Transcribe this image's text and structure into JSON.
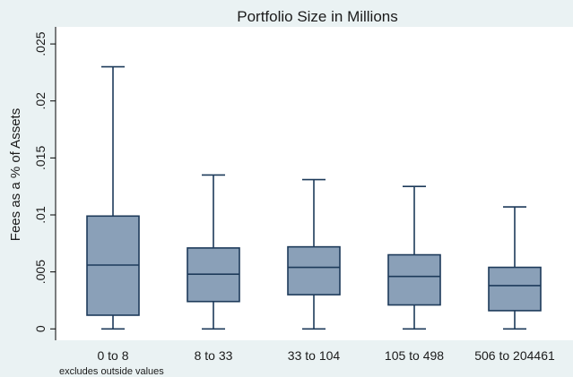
{
  "chart_data": {
    "type": "box",
    "title": "Portfolio Size in Millions",
    "xlabel": "",
    "ylabel": "Fees as a % of Assets",
    "note": "excludes outside values",
    "ylim": [
      -0.001,
      0.0265
    ],
    "yticks": [
      0,
      0.005,
      0.01,
      0.015,
      0.02,
      0.025
    ],
    "ytick_labels": [
      "0",
      ".005",
      ".01",
      ".015",
      ".02",
      ".025"
    ],
    "categories": [
      "0 to 8",
      "8 to 33",
      "33 to 104",
      "105 to 498",
      "506 to 204461"
    ],
    "boxes": [
      {
        "whisker_low": 0,
        "q1": 0.0012,
        "median": 0.0056,
        "q3": 0.0099,
        "whisker_high": 0.023
      },
      {
        "whisker_low": 0,
        "q1": 0.0024,
        "median": 0.0048,
        "q3": 0.0071,
        "whisker_high": 0.0135
      },
      {
        "whisker_low": 0,
        "q1": 0.003,
        "median": 0.0054,
        "q3": 0.0072,
        "whisker_high": 0.0131
      },
      {
        "whisker_low": 0,
        "q1": 0.0021,
        "median": 0.0046,
        "q3": 0.0065,
        "whisker_high": 0.0125
      },
      {
        "whisker_low": 0,
        "q1": 0.0016,
        "median": 0.0038,
        "q3": 0.0054,
        "whisker_high": 0.0107
      }
    ],
    "grid": false,
    "colors": {
      "background": "#eaf2f3",
      "plot_area": "#ffffff",
      "box_fill": "#8aa0b8",
      "box_stroke": "#1d3a5a"
    }
  }
}
